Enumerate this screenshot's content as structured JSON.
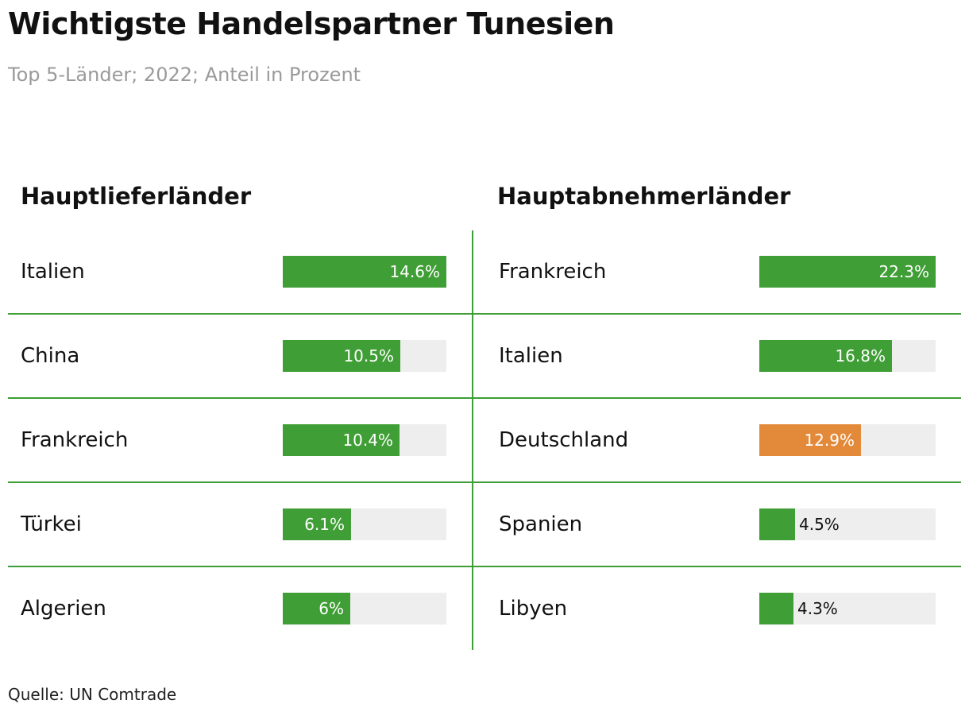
{
  "title": "Wichtigste Handelspartner Tunesien",
  "subtitle": "Top 5-Länder; 2022; Anteil in Prozent",
  "source": "Quelle: UN Comtrade",
  "colors": {
    "bar": "#3f9e35",
    "highlight": "#e38a3a",
    "track": "#eeeeee",
    "divider": "#3f9e35"
  },
  "chart_data": [
    {
      "type": "bar",
      "title": "Hauptlieferländer",
      "categories": [
        "Italien",
        "China",
        "Frankreich",
        "Türkei",
        "Algerien"
      ],
      "values": [
        14.6,
        10.5,
        10.4,
        6.1,
        6
      ],
      "labels": [
        "14.6%",
        "10.5%",
        "10.4%",
        "6.1%",
        "6%"
      ],
      "xlim": [
        0,
        14.6
      ]
    },
    {
      "type": "bar",
      "title": "Hauptabnehmerländer",
      "categories": [
        "Frankreich",
        "Italien",
        "Deutschland",
        "Spanien",
        "Libyen"
      ],
      "values": [
        22.3,
        16.8,
        12.9,
        4.5,
        4.3
      ],
      "labels": [
        "22.3%",
        "16.8%",
        "12.9%",
        "4.5%",
        "4.3%"
      ],
      "highlight": "Deutschland",
      "xlim": [
        0,
        22.3
      ]
    }
  ]
}
